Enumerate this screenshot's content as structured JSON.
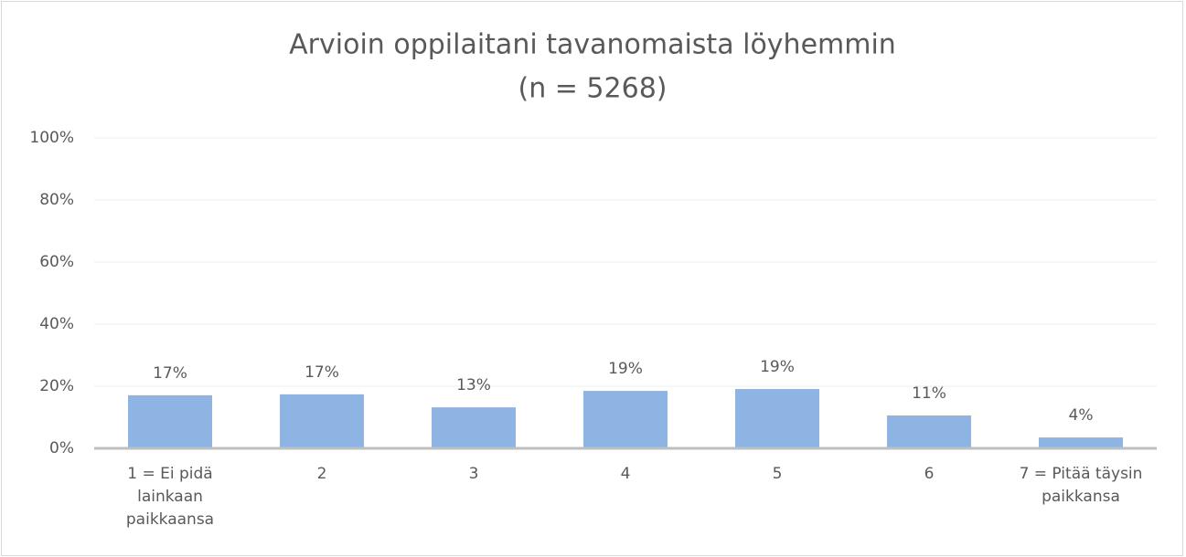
{
  "chart_data": {
    "type": "bar",
    "title": "Arvioin oppilaitani tavanomaista löyhemmin",
    "subtitle": "(n = 5268)",
    "categories": [
      "1 = Ei pidä lainkaan paikkaansa",
      "2",
      "3",
      "4",
      "5",
      "6",
      "7 = Pitää täysin paikkansa"
    ],
    "values": [
      17.1,
      17.4,
      13.2,
      18.5,
      19.1,
      10.6,
      3.5
    ],
    "value_labels": [
      "17%",
      "17%",
      "13%",
      "19%",
      "19%",
      "11%",
      "4%"
    ],
    "color": "#8db4e2",
    "ylim": [
      0,
      100
    ],
    "yticks": [
      {
        "value": 0,
        "label": "0%"
      },
      {
        "value": 20,
        "label": "20%"
      },
      {
        "value": 40,
        "label": "40%"
      },
      {
        "value": 60,
        "label": "60%"
      },
      {
        "value": 80,
        "label": "80%"
      },
      {
        "value": 100,
        "label": "100%"
      }
    ],
    "grid": true
  }
}
